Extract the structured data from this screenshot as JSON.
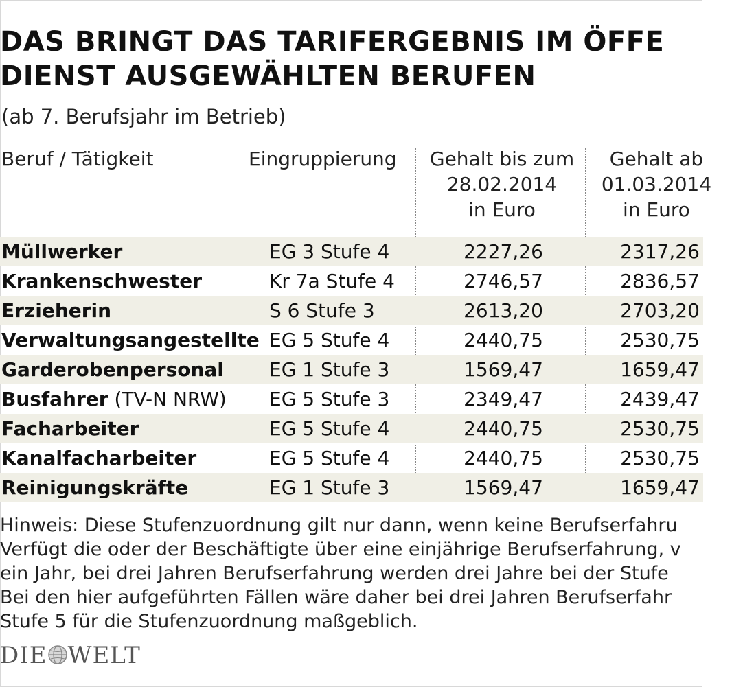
{
  "title": {
    "line1": "DAS BRINGT DAS TARIFERGEBNIS IM ÖFFE",
    "line2": "DIENST AUSGEWÄHLTEN BERUFEN"
  },
  "subtitle": "(ab 7. Berufsjahr im Betrieb)",
  "table": {
    "headers": {
      "beruf": "Beruf / Tätigkeit",
      "eingruppierung": "Eingruppierung",
      "gehalt_bis": [
        "Gehalt bis zum",
        "28.02.2014",
        "in Euro"
      ],
      "gehalt_ab": [
        "Gehalt ab",
        "01.03.2014",
        "in Euro"
      ]
    },
    "rows": [
      {
        "beruf": "Müllwerker",
        "note": "",
        "gruppe": "EG 3 Stufe 4",
        "bis": "2227,26",
        "ab": "2317,26"
      },
      {
        "beruf": "Krankenschwester",
        "note": "",
        "gruppe": "Kr 7a Stufe 4",
        "bis": "2746,57",
        "ab": "2836,57"
      },
      {
        "beruf": "Erzieherin",
        "note": "",
        "gruppe": "S 6 Stufe 3",
        "bis": "2613,20",
        "ab": "2703,20"
      },
      {
        "beruf": "Verwaltungsangestellte",
        "note": "",
        "gruppe": "EG 5 Stufe 4",
        "bis": "2440,75",
        "ab": "2530,75"
      },
      {
        "beruf": "Garderobenpersonal",
        "note": "",
        "gruppe": "EG 1 Stufe 3",
        "bis": "1569,47",
        "ab": "1659,47"
      },
      {
        "beruf": "Busfahrer",
        "note": " (TV-N NRW)",
        "gruppe": "EG 5 Stufe 3",
        "bis": "2349,47",
        "ab": "2439,47"
      },
      {
        "beruf": "Facharbeiter",
        "note": "",
        "gruppe": "EG 5 Stufe 4",
        "bis": "2440,75",
        "ab": "2530,75"
      },
      {
        "beruf": "Kanalfacharbeiter",
        "note": "",
        "gruppe": "EG 5 Stufe 4",
        "bis": "2440,75",
        "ab": "2530,75"
      },
      {
        "beruf": "Reinigungskräfte",
        "note": "",
        "gruppe": "EG 1 Stufe 3",
        "bis": "1569,47",
        "ab": "1659,47"
      }
    ]
  },
  "hinweis": [
    "Hinweis: Diese Stufenzuordnung gilt nur dann, wenn keine Berufserfahru",
    "Verfügt die oder der Beschäftigte über eine einjährige Berufserfahrung, v",
    "ein Jahr, bei drei Jahren Berufserfahrung werden drei Jahre bei der Stufe",
    "Bei den hier aufgeführten Fällen wäre daher bei drei Jahren Berufserfahr",
    "Stufe 5 für die Stufenzuordnung maßgeblich."
  ],
  "logo": {
    "left": "DIE",
    "right": "WELT"
  },
  "colors": {
    "row_shade": "#f0efe6",
    "text": "#111111"
  }
}
